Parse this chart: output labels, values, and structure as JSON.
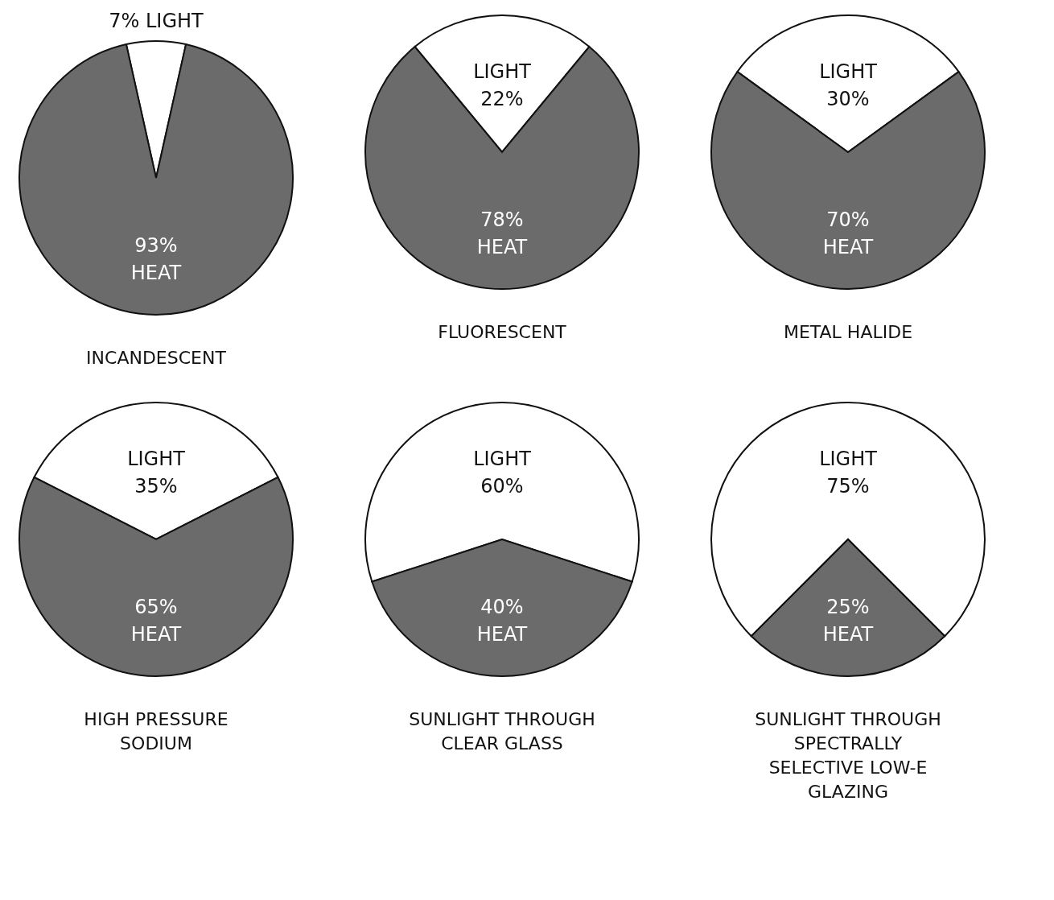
{
  "chart_data": [
    {
      "type": "pie",
      "title": "INCANDESCENT",
      "categories": [
        "LIGHT",
        "HEAT"
      ],
      "values": [
        7,
        93
      ],
      "colors": [
        "#ffffff",
        "#6b6b6b"
      ],
      "value_labels": [
        "7%",
        "93%"
      ]
    },
    {
      "type": "pie",
      "title": "FLUORESCENT",
      "categories": [
        "LIGHT",
        "HEAT"
      ],
      "values": [
        22,
        78
      ],
      "colors": [
        "#ffffff",
        "#6b6b6b"
      ],
      "value_labels": [
        "22%",
        "78%"
      ]
    },
    {
      "type": "pie",
      "title": "METAL HALIDE",
      "categories": [
        "LIGHT",
        "HEAT"
      ],
      "values": [
        30,
        70
      ],
      "colors": [
        "#ffffff",
        "#6b6b6b"
      ],
      "value_labels": [
        "30%",
        "70%"
      ]
    },
    {
      "type": "pie",
      "title": "HIGH PRESSURE SODIUM",
      "categories": [
        "LIGHT",
        "HEAT"
      ],
      "values": [
        35,
        65
      ],
      "colors": [
        "#ffffff",
        "#6b6b6b"
      ],
      "value_labels": [
        "35%",
        "65%"
      ]
    },
    {
      "type": "pie",
      "title": "SUNLIGHT THROUGH CLEAR GLASS",
      "categories": [
        "LIGHT",
        "HEAT"
      ],
      "values": [
        60,
        40
      ],
      "colors": [
        "#ffffff",
        "#6b6b6b"
      ],
      "value_labels": [
        "60%",
        "40%"
      ]
    },
    {
      "type": "pie",
      "title": "SUNLIGHT THROUGH SPECTRALLY SELECTIVE LOW-E GLAZING",
      "categories": [
        "LIGHT",
        "HEAT"
      ],
      "values": [
        75,
        25
      ],
      "colors": [
        "#ffffff",
        "#6b6b6b"
      ],
      "value_labels": [
        "75%",
        "25%"
      ]
    }
  ]
}
